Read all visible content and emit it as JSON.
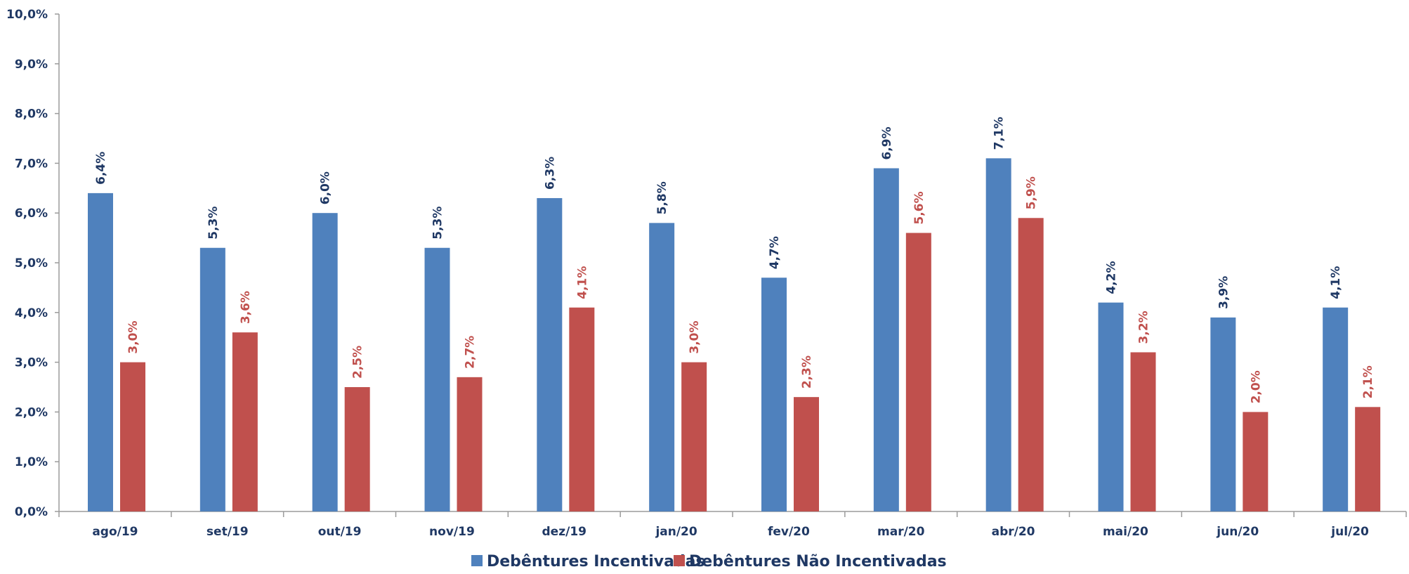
{
  "chart_data": {
    "type": "bar",
    "categories": [
      "ago/19",
      "set/19",
      "out/19",
      "nov/19",
      "dez/19",
      "jan/20",
      "fev/20",
      "mar/20",
      "abr/20",
      "mai/20",
      "jun/20",
      "jul/20"
    ],
    "series": [
      {
        "name": "Debêntures Incentivadas",
        "color": "#4f81bd",
        "label_color": "#1f3864",
        "values": [
          6.4,
          5.3,
          6.0,
          5.3,
          6.3,
          5.8,
          4.7,
          6.9,
          7.1,
          4.2,
          3.9,
          4.1
        ],
        "labels": [
          "6,4%",
          "5,3%",
          "6,0%",
          "5,3%",
          "6,3%",
          "5,8%",
          "4,7%",
          "6,9%",
          "7,1%",
          "4,2%",
          "3,9%",
          "4,1%"
        ]
      },
      {
        "name": "Debêntures Não Incentivadas",
        "color": "#c0504d",
        "label_color": "#c0504d",
        "values": [
          3.0,
          3.6,
          2.5,
          2.7,
          4.1,
          3.0,
          2.3,
          5.6,
          5.9,
          3.2,
          2.0,
          2.1
        ],
        "labels": [
          "3,0%",
          "3,6%",
          "2,5%",
          "2,7%",
          "4,1%",
          "3,0%",
          "2,3%",
          "5,6%",
          "5,9%",
          "3,2%",
          "2,0%",
          "2,1%"
        ]
      }
    ],
    "ylim": [
      0,
      10
    ],
    "yticks": [
      0,
      1,
      2,
      3,
      4,
      5,
      6,
      7,
      8,
      9,
      10
    ],
    "ytick_labels": [
      "0,0%",
      "1,0%",
      "2,0%",
      "3,0%",
      "4,0%",
      "5,0%",
      "6,0%",
      "7,0%",
      "8,0%",
      "9,0%",
      "10,0%"
    ],
    "grid": false,
    "legend_position": "bottom-center"
  }
}
